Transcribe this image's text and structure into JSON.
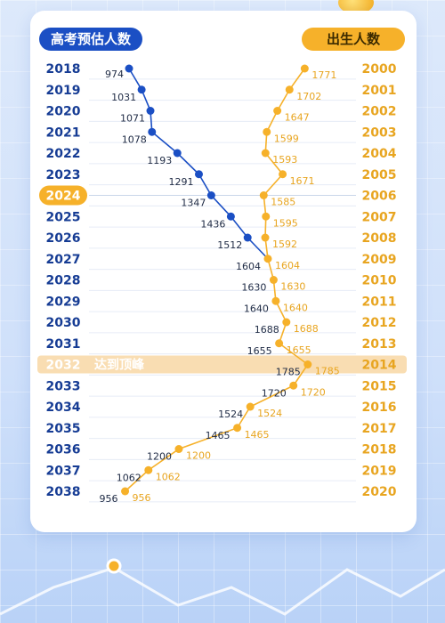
{
  "header": {
    "left_label": "高考预估人数",
    "right_label": "出生人数"
  },
  "chart_data": {
    "type": "line",
    "series": [
      {
        "name": "高考预估人数",
        "x": [
          "2018",
          "2019",
          "2020",
          "2021",
          "2022",
          "2023",
          "2024",
          "2025",
          "2026",
          "2027",
          "2028",
          "2029",
          "2030",
          "2031",
          "2032",
          "2033",
          "2034",
          "2035",
          "2036",
          "2037",
          "2038"
        ],
        "values": [
          974,
          1031,
          1071,
          1078,
          1193,
          1291,
          1347,
          1436,
          1512,
          1604,
          1630,
          1640,
          1688,
          1655,
          1785,
          1720,
          1524,
          1465,
          1200,
          1062,
          956
        ]
      },
      {
        "name": "出生人数",
        "x": [
          "2000",
          "2001",
          "2002",
          "2003",
          "2004",
          "2005",
          "2006",
          "2007",
          "2008",
          "2009",
          "2010",
          "2011",
          "2012",
          "2013",
          "2014",
          "2015",
          "2016",
          "2017",
          "2018",
          "2019",
          "2020"
        ],
        "values": [
          1771,
          1702,
          1647,
          1599,
          1593,
          1671,
          1585,
          1595,
          1592,
          1604,
          1630,
          1640,
          1688,
          1655,
          1785,
          1720,
          1524,
          1465,
          1200,
          1062,
          956
        ]
      }
    ],
    "highlight": {
      "exam_year": "2024"
    },
    "peak": {
      "exam_year": "2032",
      "label": "达到顶峰",
      "birth_year": "2014"
    },
    "colors": {
      "exam": "#1b4fc4",
      "birth": "#f6b12a",
      "axis_text_left": "#163c94",
      "axis_text_right": "#e8a520"
    }
  }
}
